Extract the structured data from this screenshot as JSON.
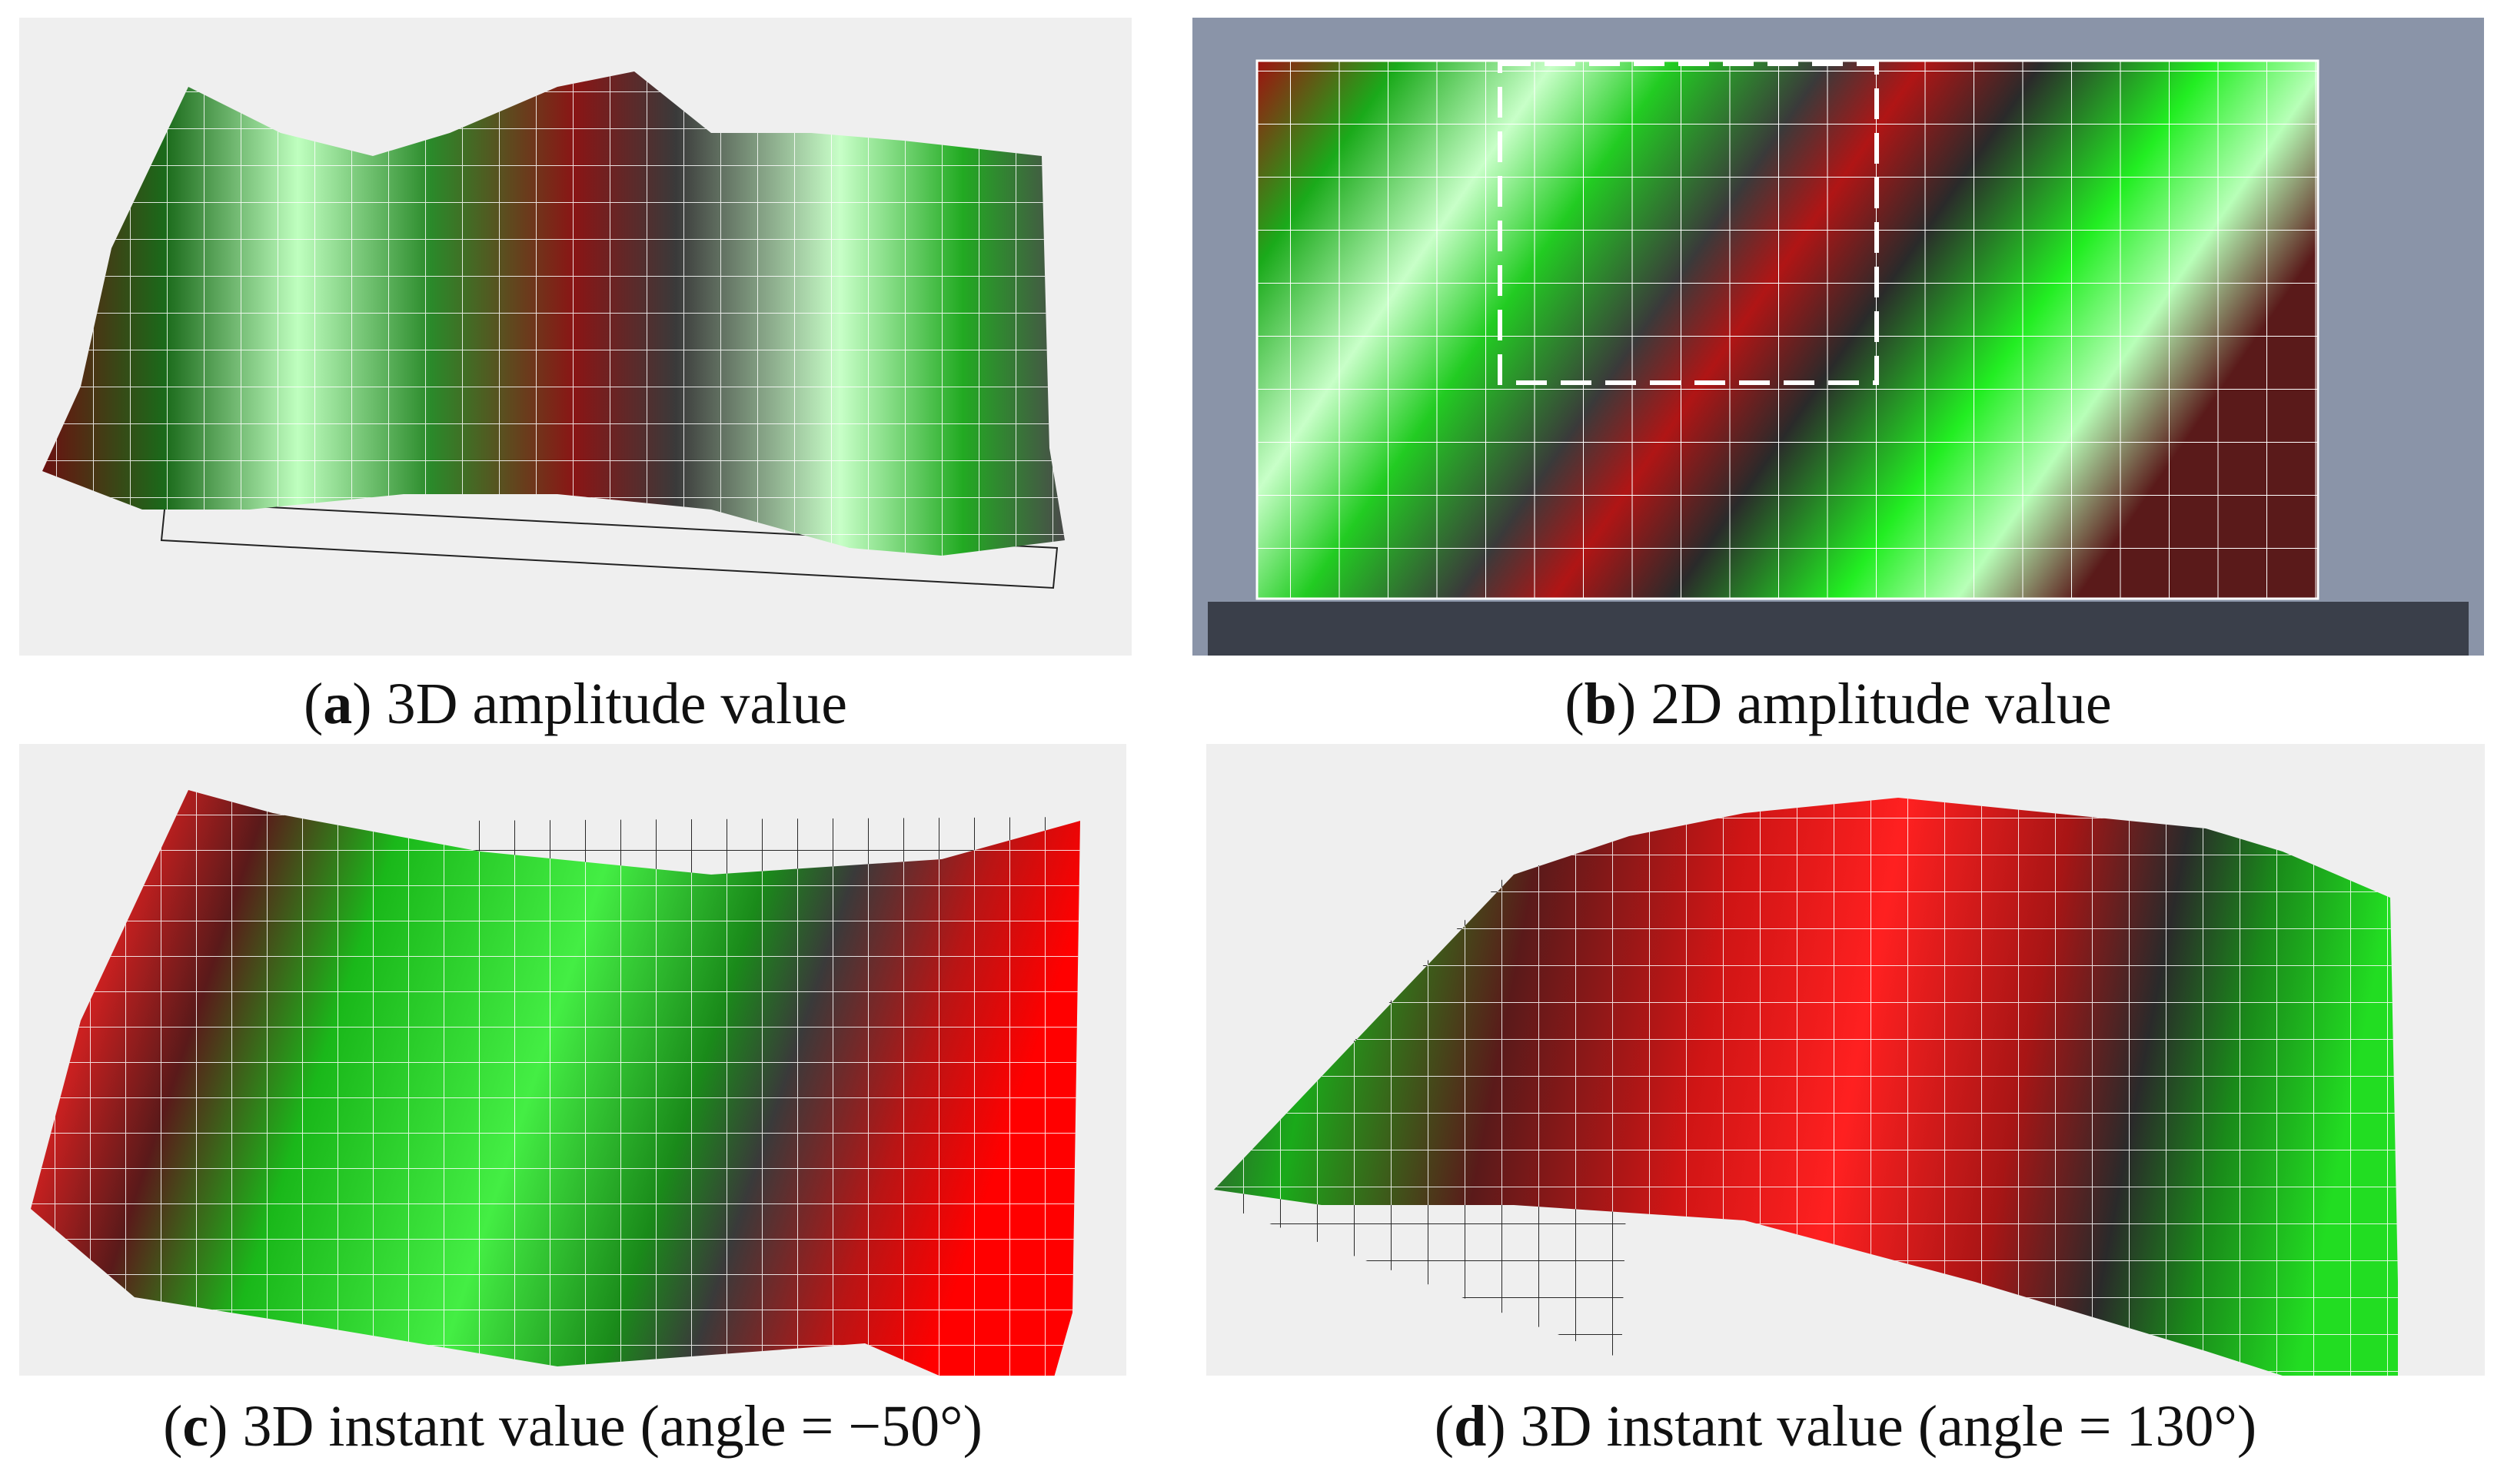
{
  "figure": {
    "panels": [
      {
        "id": "a",
        "letter": "a",
        "text": "3D amplitude value"
      },
      {
        "id": "b",
        "letter": "b",
        "text": "2D amplitude value"
      },
      {
        "id": "c",
        "letter": "c",
        "text": "3D instant value (angle = −50°)"
      },
      {
        "id": "d",
        "letter": "d",
        "text": "3D instant value (angle = 130°)"
      }
    ]
  },
  "colors": {
    "background_panel": "#efefef",
    "positive_red": "#ff0000",
    "neutral_dark": "#3a3a3a",
    "negative_green": "#00ff00",
    "plate_gray": "#8a94a8"
  }
}
